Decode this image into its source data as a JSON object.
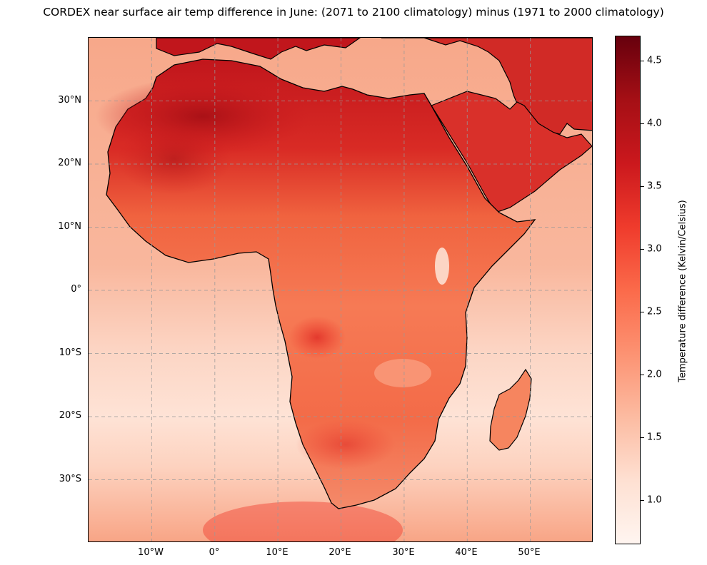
{
  "title": "CORDEX near surface air temp difference in June: (2071 to 2100 climatology) minus (1971 to 2000 climatology)",
  "map": {
    "lon_range": [
      -20,
      60
    ],
    "lat_range": [
      -40,
      40
    ],
    "lat_labels": [
      "30°N",
      "20°N",
      "10°N",
      "0°",
      "10°S",
      "20°S",
      "30°S"
    ],
    "lon_labels": [
      "10°W",
      "0°",
      "10°E",
      "20°E",
      "30°E",
      "40°E",
      "50°E"
    ],
    "gridlines": true
  },
  "colorbar": {
    "label": "Temperature difference (Kelvin/Celsius)",
    "ticks": [
      "4.5",
      "4.0",
      "3.5",
      "3.0",
      "2.5",
      "2.0",
      "1.5",
      "1.0"
    ],
    "range": [
      0.65,
      4.7
    ],
    "colormap": [
      "#fff5f0",
      "#fee0d2",
      "#fcbba1",
      "#fc9272",
      "#fb6a4a",
      "#ef3b2c",
      "#cb181d",
      "#a50f15",
      "#67000d"
    ]
  }
}
